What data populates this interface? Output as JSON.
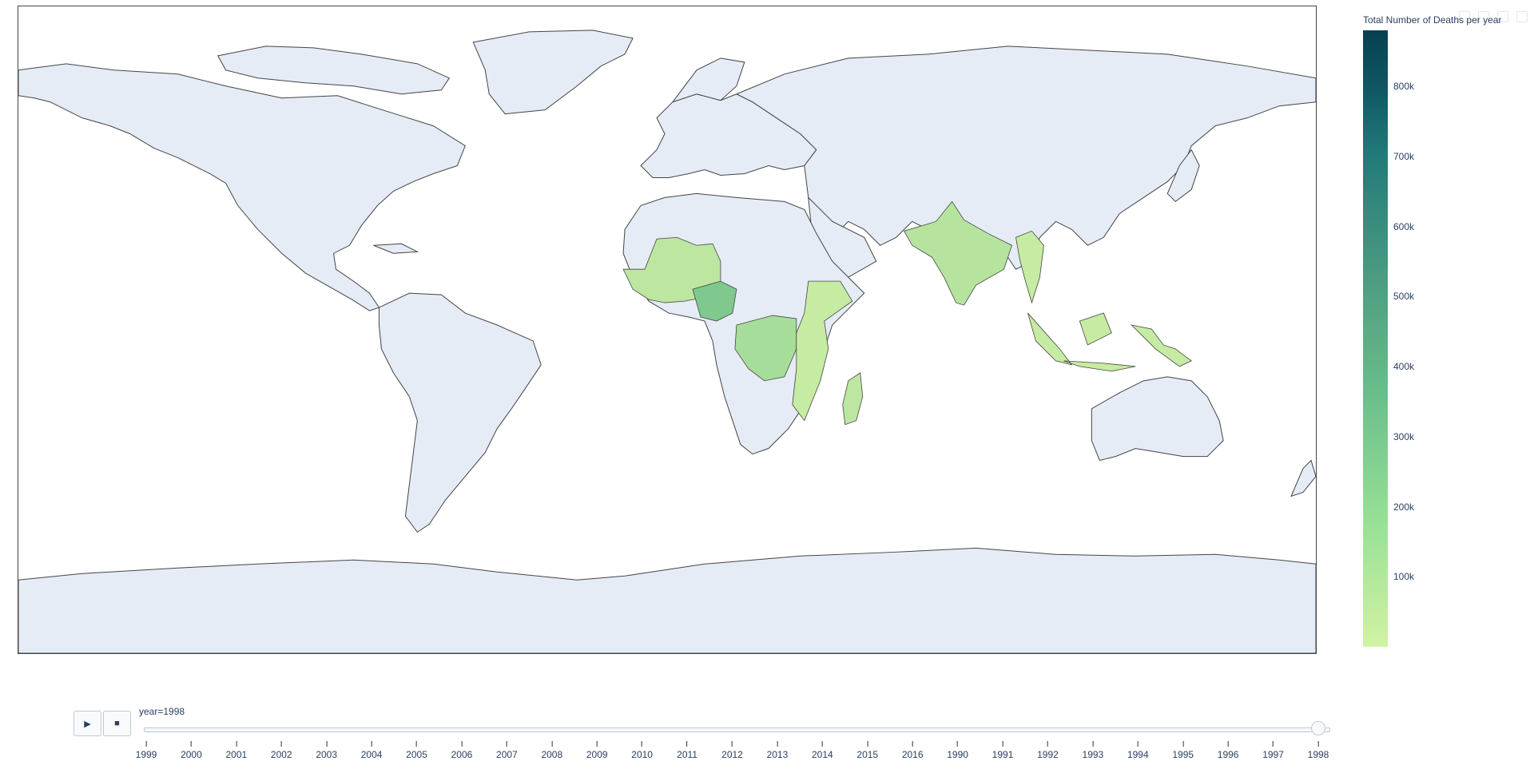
{
  "colorbar": {
    "title": "Total Number of Deaths per year",
    "ticks": [
      "800k",
      "700k",
      "600k",
      "500k",
      "400k",
      "300k",
      "200k",
      "100k"
    ],
    "tick_values": [
      800000,
      700000,
      600000,
      500000,
      400000,
      300000,
      200000,
      100000
    ],
    "range": [
      0,
      880000
    ],
    "colors": [
      "#d3f2a3",
      "#97e196",
      "#6cc08b",
      "#4c9b82",
      "#217a79",
      "#105965",
      "#074050"
    ]
  },
  "map": {
    "land_color": "#e5ecf6",
    "border_color": "#444444",
    "highlighted_regions": [
      "West Africa",
      "Nigeria",
      "Central Africa",
      "East Africa",
      "Madagascar",
      "India",
      "Myanmar",
      "Indonesia"
    ]
  },
  "animation": {
    "play_icon": "play-icon",
    "stop_icon": "stop-icon",
    "play_glyph": "▶",
    "stop_glyph": "■"
  },
  "slider": {
    "current_label": "year=1998",
    "current_index": 26,
    "steps": [
      "1999",
      "2000",
      "2001",
      "2002",
      "2003",
      "2004",
      "2005",
      "2006",
      "2007",
      "2008",
      "2009",
      "2010",
      "2011",
      "2012",
      "2013",
      "2014",
      "2015",
      "2016",
      "1990",
      "1991",
      "1992",
      "1993",
      "1994",
      "1995",
      "1996",
      "1997",
      "1998"
    ]
  }
}
